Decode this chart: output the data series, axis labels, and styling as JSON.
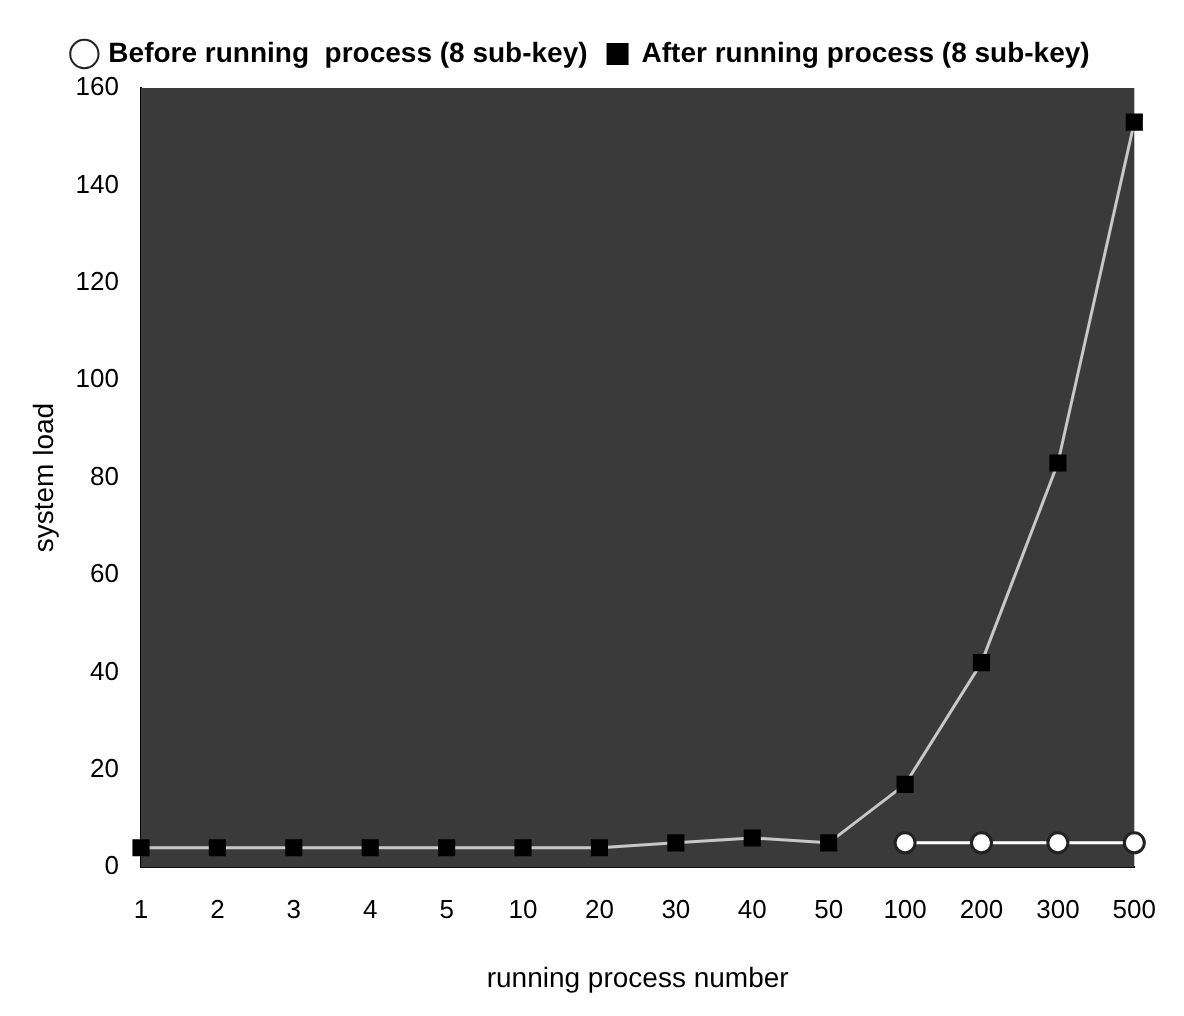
{
  "chart_data": {
    "type": "line",
    "xlabel": "running process number",
    "ylabel": "system load",
    "categories": [
      "1",
      "2",
      "3",
      "4",
      "5",
      "10",
      "20",
      "30",
      "40",
      "50",
      "100",
      "200",
      "300",
      "500"
    ],
    "series": [
      {
        "name": "Before running  process (8 sub-key)",
        "color": "#ffffff",
        "marker": "circle",
        "values": [
          null,
          null,
          null,
          null,
          null,
          null,
          null,
          null,
          null,
          null,
          5,
          5,
          5,
          5
        ]
      },
      {
        "name": "After running process (8 sub-key)",
        "color": "#000000",
        "marker": "square",
        "values": [
          4,
          4,
          4,
          4,
          4,
          4,
          4,
          5,
          6,
          5,
          17,
          42,
          83,
          153
        ]
      }
    ],
    "ylim": [
      0,
      160
    ],
    "yticks": [
      0,
      20,
      40,
      60,
      80,
      100,
      120,
      140,
      160
    ],
    "grid": false,
    "legend": "top"
  }
}
